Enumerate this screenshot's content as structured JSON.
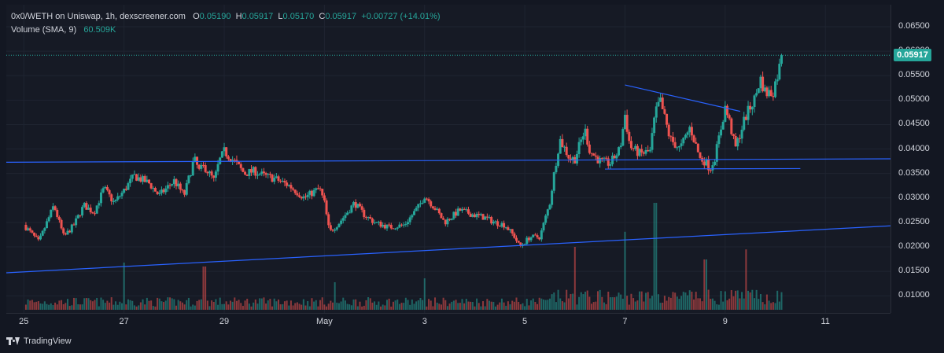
{
  "legend": {
    "symbol": "0x0/WETH on Uniswap, 1h, dexscreener.com",
    "o_label": "O",
    "o_value": "0.05190",
    "h_label": "H",
    "h_value": "0.05917",
    "l_label": "L",
    "l_value": "0.05170",
    "c_label": "C",
    "c_value": "0.05917",
    "change": "+0.00727 (+14.01%)",
    "volume_label": "Volume (SMA, 9)",
    "volume_value": "60.509K"
  },
  "last_price_label": "0.05917",
  "brand": "TradingView",
  "colors": {
    "up": "#26a69a",
    "down": "#ef5350",
    "trendline": "#2962ff",
    "background": "#161a25"
  },
  "chart_data": {
    "type": "candlestick",
    "x_unit": "days from Apr 25 00:00 (1h candles)",
    "y_ticks": [
      "0.06500",
      "0.06000",
      "0.05500",
      "0.05000",
      "0.04500",
      "0.04000",
      "0.03500",
      "0.03000",
      "0.02500",
      "0.02000",
      "0.01500",
      "0.01000"
    ],
    "y_tick_values": [
      0.065,
      0.06,
      0.055,
      0.05,
      0.045,
      0.04,
      0.035,
      0.03,
      0.025,
      0.02,
      0.015,
      0.01
    ],
    "ylim": [
      0.0065,
      0.0695
    ],
    "x_ticks": [
      {
        "label": "25",
        "day": 0
      },
      {
        "label": "27",
        "day": 2
      },
      {
        "label": "29",
        "day": 4
      },
      {
        "label": "May",
        "day": 6
      },
      {
        "label": "3",
        "day": 8
      },
      {
        "label": "5",
        "day": 10
      },
      {
        "label": "7",
        "day": 12
      },
      {
        "label": "9",
        "day": 14
      },
      {
        "label": "11",
        "day": 16
      }
    ],
    "xlim": [
      -0.35,
      17.3
    ],
    "last_price": 0.05917,
    "price_path": [
      [
        0.0,
        0.0245
      ],
      [
        0.3,
        0.021
      ],
      [
        0.5,
        0.026
      ],
      [
        0.6,
        0.0285
      ],
      [
        0.8,
        0.022
      ],
      [
        1.0,
        0.0245
      ],
      [
        1.2,
        0.0285
      ],
      [
        1.4,
        0.027
      ],
      [
        1.6,
        0.032
      ],
      [
        1.8,
        0.029
      ],
      [
        2.0,
        0.0315
      ],
      [
        2.2,
        0.0345
      ],
      [
        2.5,
        0.033
      ],
      [
        2.7,
        0.0305
      ],
      [
        3.0,
        0.0335
      ],
      [
        3.2,
        0.0305
      ],
      [
        3.4,
        0.038
      ],
      [
        3.5,
        0.0355
      ],
      [
        3.6,
        0.0365
      ],
      [
        3.8,
        0.0335
      ],
      [
        3.9,
        0.0375
      ],
      [
        4.0,
        0.0395
      ],
      [
        4.2,
        0.0375
      ],
      [
        4.4,
        0.035
      ],
      [
        4.6,
        0.0355
      ],
      [
        4.8,
        0.0345
      ],
      [
        5.0,
        0.034
      ],
      [
        5.3,
        0.0325
      ],
      [
        5.6,
        0.03
      ],
      [
        5.9,
        0.032
      ],
      [
        6.0,
        0.029
      ],
      [
        6.1,
        0.023
      ],
      [
        6.3,
        0.025
      ],
      [
        6.6,
        0.029
      ],
      [
        6.8,
        0.0265
      ],
      [
        7.0,
        0.025
      ],
      [
        7.3,
        0.024
      ],
      [
        7.6,
        0.0245
      ],
      [
        7.9,
        0.0285
      ],
      [
        8.0,
        0.0305
      ],
      [
        8.2,
        0.028
      ],
      [
        8.4,
        0.025
      ],
      [
        8.7,
        0.0275
      ],
      [
        9.0,
        0.0265
      ],
      [
        9.2,
        0.026
      ],
      [
        9.4,
        0.025
      ],
      [
        9.6,
        0.0245
      ],
      [
        9.8,
        0.022
      ],
      [
        9.9,
        0.02
      ],
      [
        10.1,
        0.022
      ],
      [
        10.3,
        0.022
      ],
      [
        10.5,
        0.029
      ],
      [
        10.6,
        0.036
      ],
      [
        10.7,
        0.042
      ],
      [
        10.9,
        0.038
      ],
      [
        11.0,
        0.038
      ],
      [
        11.2,
        0.044
      ],
      [
        11.3,
        0.0395
      ],
      [
        11.5,
        0.0375
      ],
      [
        11.7,
        0.037
      ],
      [
        11.9,
        0.04
      ],
      [
        12.0,
        0.047
      ],
      [
        12.1,
        0.0405
      ],
      [
        12.3,
        0.039
      ],
      [
        12.5,
        0.0395
      ],
      [
        12.6,
        0.047
      ],
      [
        12.7,
        0.05
      ],
      [
        12.9,
        0.042
      ],
      [
        13.1,
        0.04
      ],
      [
        13.3,
        0.0445
      ],
      [
        13.5,
        0.038
      ],
      [
        13.6,
        0.0375
      ],
      [
        13.7,
        0.036
      ],
      [
        13.8,
        0.0385
      ],
      [
        14.0,
        0.0485
      ],
      [
        14.1,
        0.045
      ],
      [
        14.2,
        0.04
      ],
      [
        14.4,
        0.0465
      ],
      [
        14.6,
        0.0505
      ],
      [
        14.7,
        0.0545
      ],
      [
        14.8,
        0.0515
      ],
      [
        14.95,
        0.0515
      ],
      [
        15.05,
        0.0555
      ],
      [
        15.15,
        0.0592
      ]
    ],
    "volume_peaks": [
      {
        "day": 2.0,
        "rel": 0.6
      },
      {
        "day": 3.6,
        "rel": 0.55
      },
      {
        "day": 6.2,
        "rel": 0.35
      },
      {
        "day": 8.0,
        "rel": 0.4
      },
      {
        "day": 11.0,
        "rel": 0.5
      },
      {
        "day": 12.0,
        "rel": 0.62
      },
      {
        "day": 12.6,
        "rel": 0.85
      },
      {
        "day": 13.6,
        "rel": 0.4
      },
      {
        "day": 14.4,
        "rel": 0.48
      }
    ],
    "trendlines": [
      {
        "name": "upper-trendline",
        "from": [
          12.0,
          0.0531
        ],
        "to": [
          14.3,
          0.0477
        ]
      },
      {
        "name": "horizontal-resistance",
        "from": [
          -0.35,
          0.0373
        ],
        "to": [
          17.3,
          0.038
        ]
      },
      {
        "name": "rising-support",
        "from": [
          -0.35,
          0.0147
        ],
        "to": [
          17.3,
          0.0243
        ]
      },
      {
        "name": "range-bottom",
        "from": [
          11.6,
          0.0359
        ],
        "to": [
          15.5,
          0.036
        ]
      }
    ]
  }
}
